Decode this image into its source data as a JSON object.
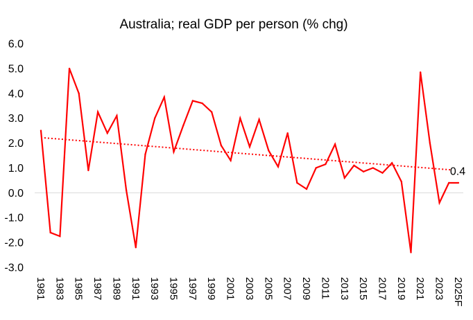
{
  "chart_data": {
    "type": "line",
    "title": "Australia; real GDP per person (% chg)",
    "xlabel": "",
    "ylabel": "",
    "ylim": [
      -3.0,
      6.0
    ],
    "yticks": [
      "6.0",
      "5.0",
      "4.0",
      "3.0",
      "2.0",
      "1.0",
      "0.0",
      "-1.0",
      "-2.0",
      "-3.0"
    ],
    "ytick_values": [
      6,
      5,
      4,
      3,
      2,
      1,
      0,
      -1,
      -2,
      -3
    ],
    "grid": false,
    "zero_line": true,
    "legend": "none",
    "x": [
      "1981",
      "1982",
      "1983",
      "1984",
      "1985",
      "1986",
      "1987",
      "1988",
      "1989",
      "1990",
      "1991",
      "1992",
      "1993",
      "1994",
      "1995",
      "1996",
      "1997",
      "1998",
      "1999",
      "2000",
      "2001",
      "2002",
      "2003",
      "2004",
      "2005",
      "2006",
      "2007",
      "2008",
      "2009",
      "2010",
      "2011",
      "2012",
      "2013",
      "2014",
      "2015",
      "2016",
      "2017",
      "2018",
      "2019",
      "2020",
      "2021",
      "2022",
      "2023",
      "2024",
      "2025F"
    ],
    "xtick_labels": [
      "1981",
      "1983",
      "1985",
      "1987",
      "1989",
      "1991",
      "1993",
      "1995",
      "1997",
      "1999",
      "2001",
      "2003",
      "2005",
      "2007",
      "2009",
      "2011",
      "2013",
      "2015",
      "2017",
      "2019",
      "2021",
      "2023",
      "2025F"
    ],
    "series": [
      {
        "name": "Real GDP per person (% chg)",
        "color": "#FF0000",
        "style": "solid",
        "values": [
          2.5,
          -1.6,
          -1.75,
          5.0,
          4.0,
          0.9,
          3.25,
          2.4,
          3.1,
          0.1,
          -2.2,
          1.55,
          3.0,
          3.85,
          1.65,
          2.7,
          3.7,
          3.6,
          3.25,
          1.9,
          1.3,
          3.0,
          1.85,
          2.95,
          1.7,
          1.05,
          2.4,
          0.4,
          0.15,
          1.0,
          1.15,
          1.95,
          0.6,
          1.1,
          0.85,
          1.0,
          0.8,
          1.2,
          0.45,
          -2.4,
          4.85,
          2.0,
          -0.4,
          0.4,
          0.4
        ]
      },
      {
        "name": "Linear trend",
        "color": "#FF0000",
        "style": "dotted",
        "start_value": 2.22,
        "end_value": 0.92
      }
    ],
    "annotations": [
      {
        "text": "0.4",
        "x": "2025F",
        "near_series": "Linear trend"
      }
    ]
  }
}
